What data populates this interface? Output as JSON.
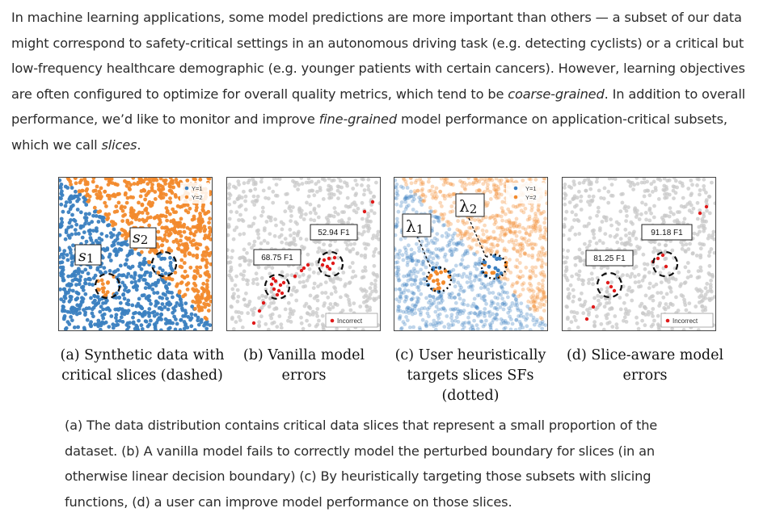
{
  "intro": {
    "part1": "In machine learning applications, some model predictions are more important than others — a subset of our data might correspond to safety-critical settings in an autonomous driving task (e.g. detecting cyclists) or a critical but low-frequency healthcare demographic (e.g. younger patients with certain cancers). However, learning objectives are often configured to optimize for overall quality metrics, which tend to be ",
    "em1": "coarse-grained",
    "part2": ". In addition to overall performance, we’d like to monitor and improve ",
    "em2": "fine-grained",
    "part3": " model performance on application-critical subsets, which we call ",
    "em3": "slices",
    "part4": "."
  },
  "colors": {
    "class1": "#3a7fc0",
    "class2": "#f28a2c",
    "gray": "#c8c8c8",
    "incorrect": "#e01a1a"
  },
  "panels": {
    "a": {
      "legend": [
        "Y=1",
        "Y=2"
      ],
      "slice_labels": [
        "s",
        "s"
      ],
      "slice_subscripts": [
        "1",
        "2"
      ]
    },
    "b": {
      "f1_labels": [
        "68.75 F1",
        "52.94 F1"
      ],
      "legend": "Incorrect"
    },
    "c": {
      "legend": [
        "Y=1",
        "Y=2"
      ],
      "sf_labels": [
        "λ",
        "λ"
      ],
      "sf_subscripts": [
        "1",
        "2"
      ]
    },
    "d": {
      "f1_labels": [
        "81.25 F1",
        "91.18 F1"
      ],
      "legend": "Incorrect"
    }
  },
  "subcaptions": {
    "a": [
      "(a) Synthetic data with",
      "critical slices (dashed)"
    ],
    "b": [
      "(b) Vanilla model",
      "errors"
    ],
    "c": [
      "(c) User heuristically",
      "targets slices SFs (dotted)"
    ],
    "d": [
      "(d) Slice-aware model",
      "errors"
    ]
  },
  "caption": "(a) The data distribution contains critical data slices that represent a small proportion of the dataset. (b) A vanilla model fails to correctly model the perturbed boundary for slices (in an otherwise linear decision boundary) (c) By heuristically targeting those subsets with slicing functions, (d) a user can improve model performance on those slices."
}
